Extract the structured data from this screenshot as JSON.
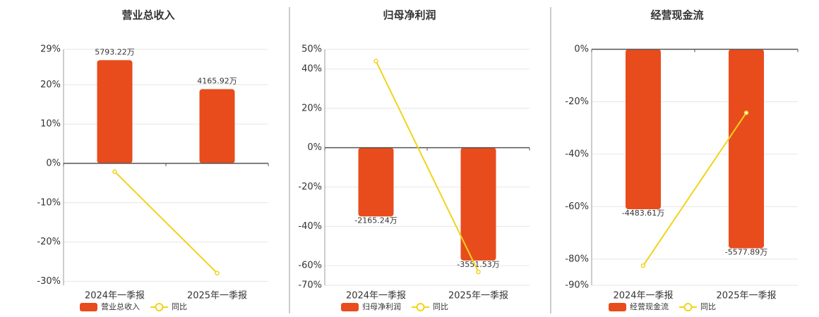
{
  "chart_data": [
    {
      "type": "bar_line",
      "title": "营业总收入",
      "categories": [
        "2024年一季报",
        "2025年一季报"
      ],
      "series": [
        {
          "name": "营业总收入",
          "color": "#e84c1c",
          "axis": "y2",
          "values": [
            5793.22,
            4165.92
          ],
          "value_labels": [
            "5793.22万",
            "4165.92万"
          ]
        },
        {
          "name": "同比",
          "color": "#f2d31b",
          "values": [
            -2.1,
            -27.9
          ]
        }
      ],
      "ylim": [
        -31,
        29
      ],
      "yticks": [
        {
          "value": -30,
          "label": "-30%"
        },
        {
          "value": -20,
          "label": "-20%"
        },
        {
          "value": -10,
          "label": "-10%"
        },
        {
          "value": 0,
          "label": "0%"
        },
        {
          "value": 10,
          "label": "10%"
        },
        {
          "value": 20,
          "label": "20%"
        },
        {
          "value": 29,
          "label": "29%"
        }
      ],
      "y2lim": [
        -6840,
        6400
      ],
      "grid": true
    },
    {
      "type": "bar_line",
      "title": "归母净利润",
      "categories": [
        "2024年一季报",
        "2025年一季报"
      ],
      "series": [
        {
          "name": "归母净利润",
          "color": "#e84c1c",
          "axis": "y2",
          "values": [
            -2165.24,
            -3551.53
          ],
          "value_labels": [
            "-2165.24万",
            "-3551.53万"
          ]
        },
        {
          "name": "同比",
          "color": "#f2d31b",
          "values": [
            44,
            -63.2
          ]
        }
      ],
      "ylim": [
        -70,
        50
      ],
      "yticks": [
        {
          "value": -70,
          "label": "-70%"
        },
        {
          "value": -60,
          "label": "-60%"
        },
        {
          "value": -40,
          "label": "-40%"
        },
        {
          "value": -20,
          "label": "-20%"
        },
        {
          "value": 0,
          "label": "0%"
        },
        {
          "value": 20,
          "label": "20%"
        },
        {
          "value": 40,
          "label": "40%"
        },
        {
          "value": 50,
          "label": "50%"
        }
      ],
      "y2lim": [
        -4331,
        3093
      ],
      "grid": true
    },
    {
      "type": "bar_line",
      "title": "经营现金流",
      "categories": [
        "2024年一季报",
        "2025年一季报"
      ],
      "series": [
        {
          "name": "经营现金流",
          "color": "#e84c1c",
          "axis": "y2",
          "values": [
            -4483.61,
            -5577.89
          ],
          "value_labels": [
            "-4483.61万",
            "-5577.89万"
          ]
        },
        {
          "name": "同比",
          "color": "#f2d31b",
          "values": [
            -82.5,
            -24.2
          ]
        }
      ],
      "ylim": [
        -90,
        0
      ],
      "yticks": [
        {
          "value": -90,
          "label": "-90%"
        },
        {
          "value": -80,
          "label": "-80%"
        },
        {
          "value": -60,
          "label": "-60%"
        },
        {
          "value": -40,
          "label": "-40%"
        },
        {
          "value": -20,
          "label": "-20%"
        },
        {
          "value": 0,
          "label": "0%"
        }
      ],
      "y2lim": [
        -6615,
        0
      ],
      "grid": true
    }
  ]
}
